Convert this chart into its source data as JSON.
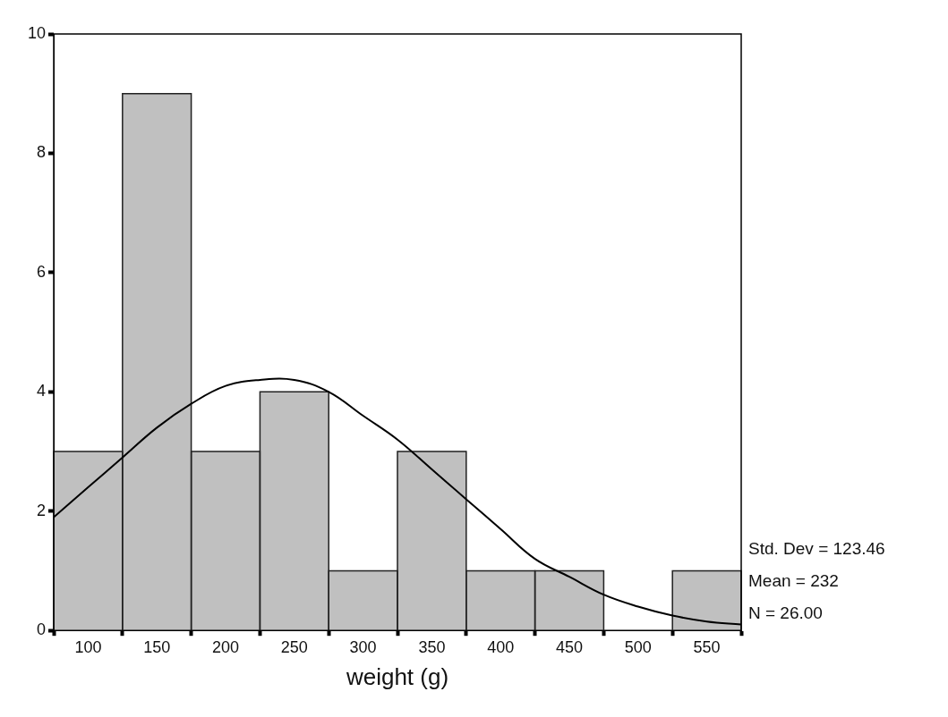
{
  "chart_data": {
    "type": "histogram",
    "xlabel": "weight (g)",
    "bins": [
      75,
      125,
      175,
      225,
      275,
      325,
      375,
      425,
      475,
      525,
      575
    ],
    "values": [
      3,
      9,
      3,
      4,
      1,
      3,
      1,
      1,
      0,
      1
    ],
    "color": "#c0c0c0",
    "series": [
      {
        "type": "line",
        "color": "#000000",
        "x": [
          75,
          100,
          125,
          150,
          175,
          200,
          225,
          250,
          275,
          300,
          325,
          350,
          375,
          400,
          425,
          450,
          475,
          500,
          525,
          550,
          575
        ],
        "values": [
          1.9,
          2.4,
          2.9,
          3.4,
          3.8,
          4.1,
          4.2,
          4.2,
          4.0,
          3.6,
          3.2,
          2.7,
          2.2,
          1.7,
          1.2,
          0.9,
          0.6,
          0.4,
          0.25,
          0.15,
          0.1
        ]
      }
    ],
    "xlim": [
      75,
      575
    ],
    "xticks": [
      100,
      150,
      200,
      250,
      300,
      350,
      400,
      450,
      500,
      550
    ],
    "ylim": [
      0,
      10
    ],
    "yticks": [
      0,
      2,
      4,
      6,
      8,
      10
    ],
    "grid": false,
    "legend": false,
    "marker": "none",
    "line_style": "solid",
    "annotations": [
      "Std. Dev = 123.46",
      "Mean = 232",
      "N = 26.00"
    ]
  }
}
